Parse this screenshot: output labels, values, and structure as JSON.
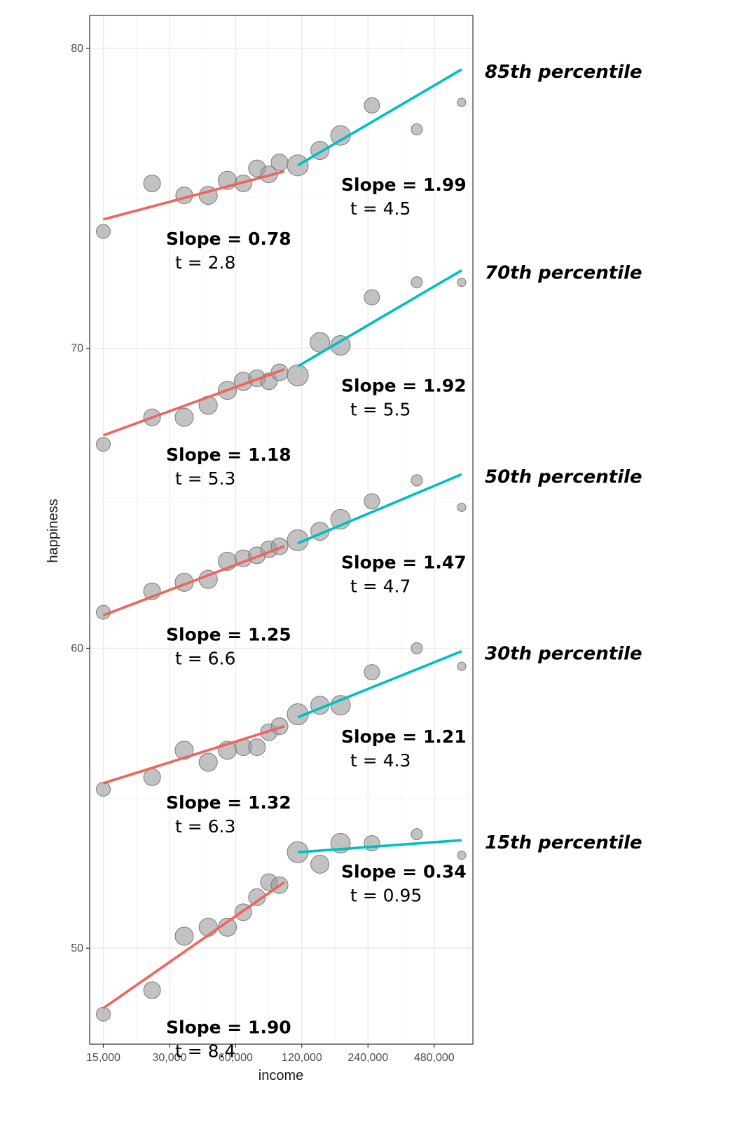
{
  "chart_data": {
    "type": "scatter",
    "xlabel": "income",
    "ylabel": "happiness",
    "x_scale": "log2",
    "xlim": [
      13000,
      720000
    ],
    "ylim": [
      46.8,
      81.1
    ],
    "x_ticks": [
      15000,
      30000,
      60000,
      120000,
      240000,
      480000
    ],
    "x_tick_labels": [
      "15,000",
      "30,000",
      "60,000",
      "120,000",
      "240,000",
      "480,000"
    ],
    "y_ticks": [
      50,
      60,
      70,
      80
    ],
    "y_tick_labels": [
      "50",
      "60",
      "70",
      "80"
    ],
    "colors": {
      "low_fit": "#f0645c",
      "high_fit": "#00bfc4",
      "points": "#999999"
    },
    "series": [
      {
        "name": "85th percentile",
        "points": [
          {
            "x": 15000,
            "y": 73.9,
            "size": 1.0
          },
          {
            "x": 25000,
            "y": 75.5,
            "size": 1.2
          },
          {
            "x": 35000,
            "y": 75.1,
            "size": 1.2
          },
          {
            "x": 45000,
            "y": 75.1,
            "size": 1.3
          },
          {
            "x": 55000,
            "y": 75.6,
            "size": 1.3
          },
          {
            "x": 65000,
            "y": 75.5,
            "size": 1.2
          },
          {
            "x": 75000,
            "y": 76.0,
            "size": 1.2
          },
          {
            "x": 85000,
            "y": 75.8,
            "size": 1.2
          },
          {
            "x": 95000,
            "y": 76.2,
            "size": 1.2
          },
          {
            "x": 115000,
            "y": 76.1,
            "size": 1.5
          },
          {
            "x": 145000,
            "y": 76.6,
            "size": 1.3
          },
          {
            "x": 180000,
            "y": 77.1,
            "size": 1.4
          },
          {
            "x": 250000,
            "y": 78.1,
            "size": 1.1
          },
          {
            "x": 400000,
            "y": 77.3,
            "size": 0.8
          },
          {
            "x": 640000,
            "y": 78.2,
            "size": 0.6
          }
        ],
        "low_fit": {
          "x": [
            15000,
            100000
          ],
          "y": [
            74.3,
            75.9
          ]
        },
        "high_fit": {
          "x": [
            115000,
            640000
          ],
          "y": [
            76.1,
            79.3
          ]
        },
        "low_slope": "Slope = 0.78",
        "low_t": "t = 2.8",
        "high_slope": "Slope = 1.99",
        "high_t": "t = 4.5"
      },
      {
        "name": "70th percentile",
        "points": [
          {
            "x": 15000,
            "y": 66.8,
            "size": 1.0
          },
          {
            "x": 25000,
            "y": 67.7,
            "size": 1.2
          },
          {
            "x": 35000,
            "y": 67.7,
            "size": 1.3
          },
          {
            "x": 45000,
            "y": 68.1,
            "size": 1.3
          },
          {
            "x": 55000,
            "y": 68.6,
            "size": 1.3
          },
          {
            "x": 65000,
            "y": 68.9,
            "size": 1.3
          },
          {
            "x": 75000,
            "y": 69.0,
            "size": 1.2
          },
          {
            "x": 85000,
            "y": 68.9,
            "size": 1.2
          },
          {
            "x": 95000,
            "y": 69.2,
            "size": 1.2
          },
          {
            "x": 115000,
            "y": 69.1,
            "size": 1.5
          },
          {
            "x": 145000,
            "y": 70.2,
            "size": 1.4
          },
          {
            "x": 180000,
            "y": 70.1,
            "size": 1.4
          },
          {
            "x": 250000,
            "y": 71.7,
            "size": 1.1
          },
          {
            "x": 400000,
            "y": 72.2,
            "size": 0.8
          },
          {
            "x": 640000,
            "y": 72.2,
            "size": 0.6
          }
        ],
        "low_fit": {
          "x": [
            15000,
            100000
          ],
          "y": [
            67.1,
            69.3
          ]
        },
        "high_fit": {
          "x": [
            115000,
            640000
          ],
          "y": [
            69.4,
            72.6
          ]
        },
        "low_slope": "Slope = 1.18",
        "low_t": "t = 5.3",
        "high_slope": "Slope = 1.92",
        "high_t": "t = 5.5"
      },
      {
        "name": "50th percentile",
        "points": [
          {
            "x": 15000,
            "y": 61.2,
            "size": 1.0
          },
          {
            "x": 25000,
            "y": 61.9,
            "size": 1.2
          },
          {
            "x": 35000,
            "y": 62.2,
            "size": 1.3
          },
          {
            "x": 45000,
            "y": 62.3,
            "size": 1.3
          },
          {
            "x": 55000,
            "y": 62.9,
            "size": 1.3
          },
          {
            "x": 65000,
            "y": 63.0,
            "size": 1.2
          },
          {
            "x": 75000,
            "y": 63.1,
            "size": 1.2
          },
          {
            "x": 85000,
            "y": 63.3,
            "size": 1.2
          },
          {
            "x": 95000,
            "y": 63.4,
            "size": 1.2
          },
          {
            "x": 115000,
            "y": 63.6,
            "size": 1.5
          },
          {
            "x": 145000,
            "y": 63.9,
            "size": 1.3
          },
          {
            "x": 180000,
            "y": 64.3,
            "size": 1.4
          },
          {
            "x": 250000,
            "y": 64.9,
            "size": 1.1
          },
          {
            "x": 400000,
            "y": 65.6,
            "size": 0.8
          },
          {
            "x": 640000,
            "y": 64.7,
            "size": 0.6
          }
        ],
        "low_fit": {
          "x": [
            15000,
            100000
          ],
          "y": [
            61.1,
            63.4
          ]
        },
        "high_fit": {
          "x": [
            115000,
            640000
          ],
          "y": [
            63.5,
            65.8
          ]
        },
        "low_slope": "Slope = 1.25",
        "low_t": "t = 6.6",
        "high_slope": "Slope = 1.47",
        "high_t": "t = 4.7"
      },
      {
        "name": "30th percentile",
        "points": [
          {
            "x": 15000,
            "y": 55.3,
            "size": 1.0
          },
          {
            "x": 25000,
            "y": 55.7,
            "size": 1.2
          },
          {
            "x": 35000,
            "y": 56.6,
            "size": 1.3
          },
          {
            "x": 45000,
            "y": 56.2,
            "size": 1.3
          },
          {
            "x": 55000,
            "y": 56.6,
            "size": 1.3
          },
          {
            "x": 65000,
            "y": 56.7,
            "size": 1.2
          },
          {
            "x": 75000,
            "y": 56.7,
            "size": 1.2
          },
          {
            "x": 85000,
            "y": 57.2,
            "size": 1.2
          },
          {
            "x": 95000,
            "y": 57.4,
            "size": 1.2
          },
          {
            "x": 115000,
            "y": 57.8,
            "size": 1.5
          },
          {
            "x": 145000,
            "y": 58.1,
            "size": 1.3
          },
          {
            "x": 180000,
            "y": 58.1,
            "size": 1.4
          },
          {
            "x": 250000,
            "y": 59.2,
            "size": 1.1
          },
          {
            "x": 400000,
            "y": 60.0,
            "size": 0.8
          },
          {
            "x": 640000,
            "y": 59.4,
            "size": 0.6
          }
        ],
        "low_fit": {
          "x": [
            15000,
            100000
          ],
          "y": [
            55.5,
            57.4
          ]
        },
        "high_fit": {
          "x": [
            115000,
            640000
          ],
          "y": [
            57.7,
            59.9
          ]
        },
        "low_slope": "Slope = 1.32",
        "low_t": "t = 6.3",
        "high_slope": "Slope = 1.21",
        "high_t": "t = 4.3"
      },
      {
        "name": "15th percentile",
        "points": [
          {
            "x": 15000,
            "y": 47.8,
            "size": 1.0
          },
          {
            "x": 25000,
            "y": 48.6,
            "size": 1.2
          },
          {
            "x": 35000,
            "y": 50.4,
            "size": 1.3
          },
          {
            "x": 45000,
            "y": 50.7,
            "size": 1.3
          },
          {
            "x": 55000,
            "y": 50.7,
            "size": 1.3
          },
          {
            "x": 65000,
            "y": 51.2,
            "size": 1.2
          },
          {
            "x": 75000,
            "y": 51.7,
            "size": 1.2
          },
          {
            "x": 85000,
            "y": 52.2,
            "size": 1.2
          },
          {
            "x": 95000,
            "y": 52.1,
            "size": 1.2
          },
          {
            "x": 115000,
            "y": 53.2,
            "size": 1.5
          },
          {
            "x": 145000,
            "y": 52.8,
            "size": 1.3
          },
          {
            "x": 180000,
            "y": 53.5,
            "size": 1.4
          },
          {
            "x": 250000,
            "y": 53.5,
            "size": 1.1
          },
          {
            "x": 400000,
            "y": 53.8,
            "size": 0.8
          },
          {
            "x": 640000,
            "y": 53.1,
            "size": 0.6
          }
        ],
        "low_fit": {
          "x": [
            15000,
            100000
          ],
          "y": [
            48.0,
            52.2
          ]
        },
        "high_fit": {
          "x": [
            115000,
            640000
          ],
          "y": [
            53.2,
            53.6
          ]
        },
        "low_slope": "Slope = 1.90",
        "low_t": "t = 8.4",
        "high_slope": "Slope = 0.34",
        "high_t": "t = 0.95"
      }
    ]
  }
}
